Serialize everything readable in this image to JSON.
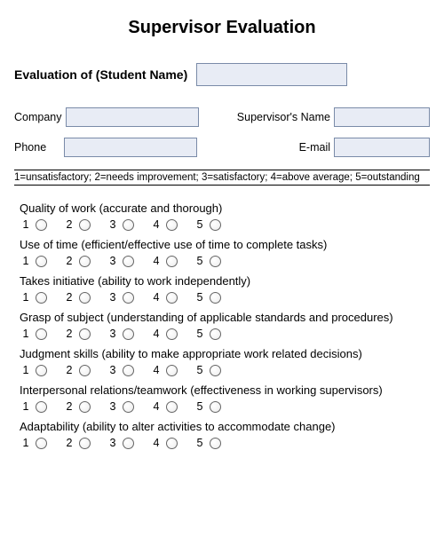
{
  "title": "Supervisor Evaluation",
  "fields": {
    "student_label": "Evaluation of (Student Name)",
    "company_label": "Company",
    "supervisor_label": "Supervisor's Name",
    "phone_label": "Phone",
    "email_label": "E-mail"
  },
  "legend": "1=unsatisfactory; 2=needs improvement; 3=satisfactory; 4=above average; 5=outstanding",
  "scale_values": [
    "1",
    "2",
    "3",
    "4",
    "5"
  ],
  "questions": [
    "Quality of work (accurate and thorough)",
    "Use of time (efficient/effective use of time to complete tasks)",
    "Takes initiative (ability to work independently)",
    "Grasp of subject (understanding of applicable standards and procedures)",
    "Judgment skills (ability to make appropriate work related decisions)",
    "Interpersonal relations/teamwork (effectiveness in working supervisors)",
    "Adaptability (ability to alter activities to accommodate change)"
  ],
  "colors": {
    "input_bg": "#e8ecf5",
    "input_border": "#7a8ba8"
  }
}
